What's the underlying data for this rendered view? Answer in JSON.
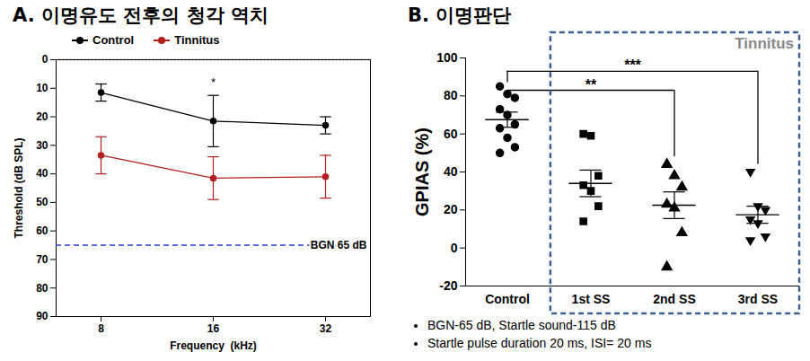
{
  "chart_data": [
    {
      "type": "line",
      "title": "A. 이명유도 전후의 청각 역치",
      "x_label": "Frequency  (kHz)",
      "y_label": "Threshold (dB SPL)",
      "categories": [
        "8",
        "16",
        "32"
      ],
      "ylim": [
        90,
        0
      ],
      "yticks": [
        0,
        10,
        20,
        30,
        40,
        50,
        60,
        70,
        80,
        90
      ],
      "legend": "top",
      "series": [
        {
          "name": "Control",
          "color": "#000000",
          "marker": "circle",
          "values": [
            11.5,
            21.5,
            23
          ],
          "errors": [
            3,
            9,
            3
          ]
        },
        {
          "name": "Tinnitus",
          "color": "#b41e1e",
          "marker": "circle",
          "values": [
            33.5,
            41.5,
            41
          ],
          "errors": [
            6.5,
            7.5,
            7.5
          ]
        }
      ],
      "annotations": [
        {
          "text": "*",
          "x": "16",
          "y": 8
        },
        {
          "text": "BGN 65 dB",
          "y": 65,
          "color": "#2a3fd6",
          "line_style": "dashed"
        },
        {
          "y": 0,
          "color": "#000000",
          "line_style": "dotted"
        }
      ]
    },
    {
      "type": "scatter",
      "title": "B. 이명판단",
      "y_label": "GPIAS (%)",
      "categories": [
        "Control",
        "1st SS",
        "2nd SS",
        "3rd SS"
      ],
      "ylim": [
        -20,
        100
      ],
      "yticks": [
        -20,
        0,
        20,
        40,
        60,
        80,
        100
      ],
      "color": "#000000",
      "markers": [
        "circle",
        "square",
        "triangle",
        "triangle-down"
      ],
      "points": [
        [
          85,
          81,
          79,
          73,
          70,
          65,
          63,
          58,
          53,
          50
        ],
        [
          60,
          59,
          38,
          33,
          30,
          22,
          14
        ],
        [
          44,
          38,
          32,
          23,
          21,
          8,
          -10
        ],
        [
          40,
          22,
          20,
          15,
          13,
          6,
          4
        ]
      ],
      "means": [
        67.5,
        34,
        22.5,
        17.5
      ],
      "errors": [
        4,
        7,
        7,
        4.5
      ],
      "annotations": [
        {
          "text": "***",
          "from": "Control",
          "to": "3rd SS",
          "y": 93,
          "y_from": 87,
          "y_to": 44
        },
        {
          "text": "**",
          "from": "Control",
          "to": "2nd SS",
          "y": 83,
          "y_from": 80,
          "y_to": 48
        },
        {
          "text": "Tinnitus",
          "from": "1st SS",
          "to": "3rd SS",
          "color": "#3d5f8f",
          "line_style": "dashed"
        }
      ],
      "notes": [
        "BGN-65 dB, Startle sound-115 dB",
        "Startle pulse duration 20 ms, ISI= 20 ms"
      ]
    }
  ]
}
